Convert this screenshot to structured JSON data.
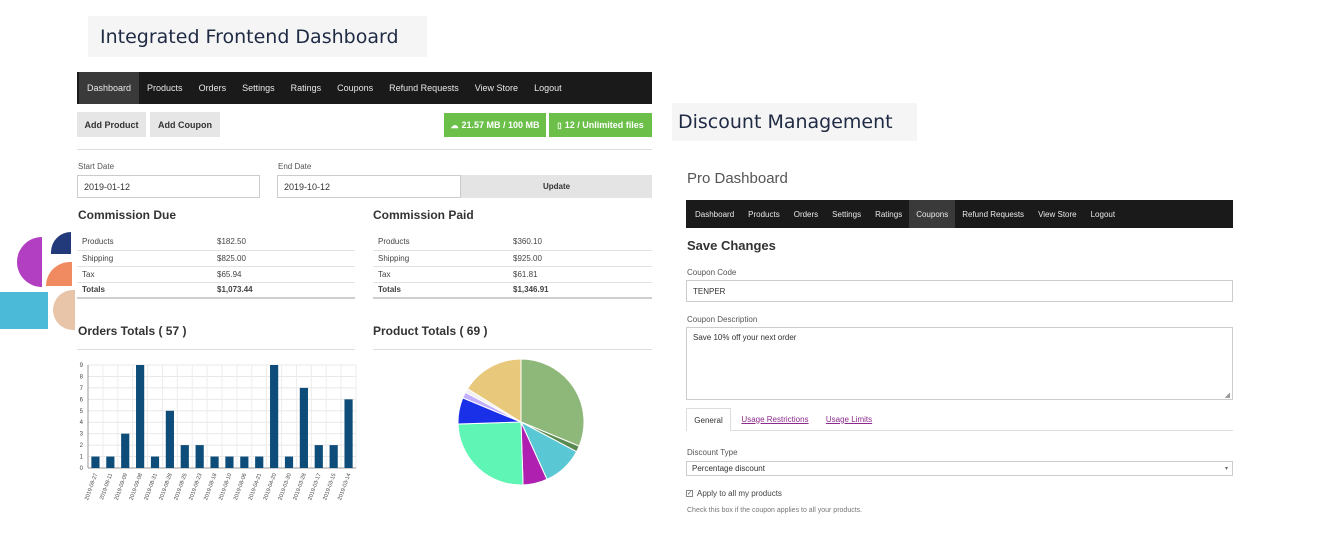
{
  "left_heading": "Integrated Frontend Dashboard",
  "right_heading": "Discount Management",
  "left_nav": [
    "Dashboard",
    "Products",
    "Orders",
    "Settings",
    "Ratings",
    "Coupons",
    "Refund Requests",
    "View Store",
    "Logout"
  ],
  "left_active_nav": 0,
  "buttons": {
    "add_product": "Add Product",
    "add_coupon": "Add Coupon",
    "storage": "21.57 MB / 100 MB",
    "files": "12 / Unlimited files"
  },
  "date_filter": {
    "start_label": "Start Date",
    "start_value": "2019-01-12",
    "end_label": "End Date",
    "end_value": "2019-10-12",
    "update_label": "Update"
  },
  "commission_due": {
    "title": "Commission Due",
    "rows": [
      {
        "label": "Products",
        "value": "$182.50"
      },
      {
        "label": "Shipping",
        "value": "$825.00"
      },
      {
        "label": "Tax",
        "value": "$65.94"
      },
      {
        "label": "Totals",
        "value": "$1,073.44"
      }
    ]
  },
  "commission_paid": {
    "title": "Commission Paid",
    "rows": [
      {
        "label": "Products",
        "value": "$360.10"
      },
      {
        "label": "Shipping",
        "value": "$925.00"
      },
      {
        "label": "Tax",
        "value": "$61.81"
      },
      {
        "label": "Totals",
        "value": "$1,346.91"
      }
    ]
  },
  "orders_totals_title": "Orders Totals ( 57 )",
  "product_totals_title": "Product Totals ( 69 )",
  "chart_data": [
    {
      "type": "bar",
      "categories": [
        "2019-09-27",
        "2019-09-11",
        "2019-09-09",
        "2019-09-08",
        "2019-08-31",
        "2019-08-28",
        "2019-08-25",
        "2019-08-23",
        "2019-08-18",
        "2019-08-10",
        "2019-08-06",
        "2019-04-21",
        "2019-04-20",
        "2019-03-30",
        "2019-03-28",
        "2019-03-17",
        "2019-03-15",
        "2019-03-14"
      ],
      "values": [
        1,
        1,
        3,
        9,
        1,
        5,
        2,
        2,
        1,
        1,
        1,
        1,
        9,
        1,
        7,
        2,
        2,
        6
      ],
      "ylim": [
        0,
        9
      ],
      "yticks": [
        0,
        1,
        2,
        3,
        4,
        5,
        6,
        7,
        8,
        9
      ],
      "grid": true,
      "color": "#0e4d7a"
    },
    {
      "type": "pie",
      "values": [
        30,
        1.5,
        10,
        6,
        24,
        6.5,
        1.5,
        1,
        15.5
      ],
      "colors": [
        "#8db87a",
        "#5a8a50",
        "#5ac8d4",
        "#b020b0",
        "#5ef5b5",
        "#1a30e8",
        "#c0b0ff",
        "#f0f0f0",
        "#e8c87a"
      ]
    }
  ],
  "pro_dashboard_title": "Pro Dashboard",
  "right_nav": [
    "Dashboard",
    "Products",
    "Orders",
    "Settings",
    "Ratings",
    "Coupons",
    "Refund Requests",
    "View Store",
    "Logout"
  ],
  "right_active_nav": 5,
  "save_changes": "Save Changes",
  "coupon_code_label": "Coupon Code",
  "coupon_code_value": "TENPER",
  "coupon_description_label": "Coupon Description",
  "coupon_description_value": "Save 10% off your next order",
  "tabs": [
    "General",
    "Usage Restrictions",
    "Usage Limits"
  ],
  "discount_type_label": "Discount Type",
  "discount_type_value": "Percentage discount",
  "apply_all_label": "Apply to all my products",
  "apply_all_help": "Check this box if the coupon applies to all your products."
}
